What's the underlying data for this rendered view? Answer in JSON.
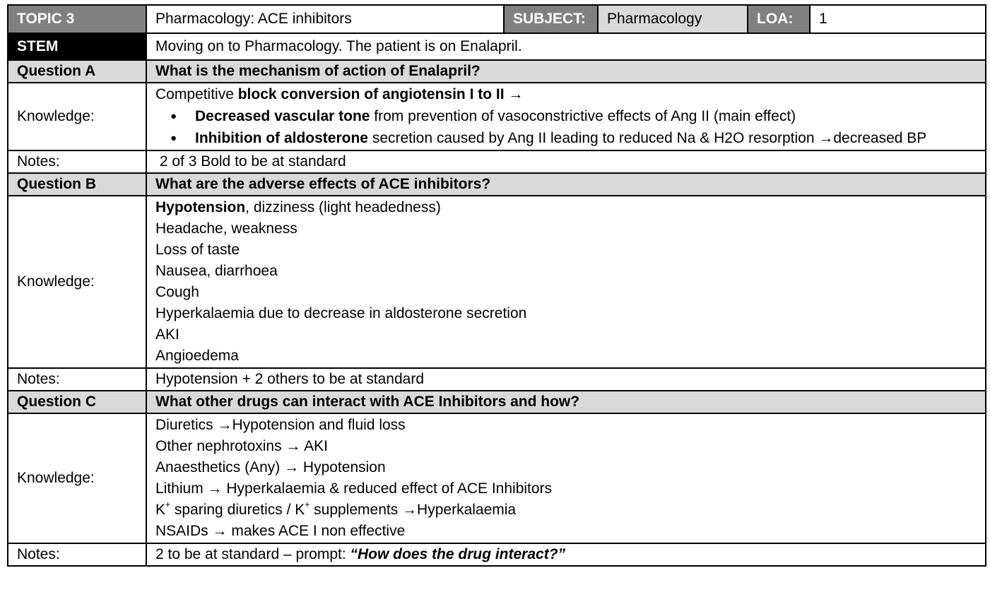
{
  "header": {
    "topic_label": "TOPIC 3",
    "topic_value": "Pharmacology: ACE inhibitors",
    "subject_label": "SUBJECT:",
    "subject_value": "Pharmacology",
    "loa_label": "LOA:",
    "loa_value": "1"
  },
  "stem": {
    "label": "STEM",
    "text": "Moving on to Pharmacology. The patient is on Enalapril."
  },
  "question_a": {
    "label": "Question A",
    "question": "What is the mechanism of action of Enalapril?",
    "knowledge_label": "Knowledge:",
    "intro_plain": "Competitive ",
    "intro_bold": "block conversion of angiotensin I to II →",
    "bullets": [
      {
        "bold": "Decreased vascular tone",
        "text": " from prevention of vasoconstrictive effects of Ang II (main effect)"
      },
      {
        "bold": "Inhibition of aldosterone",
        "text": " secretion caused by Ang II leading to reduced Na & H2O resorption →decreased BP"
      }
    ],
    "notes_label": "Notes:",
    "notes": " 2 of 3 Bold to be at standard"
  },
  "question_b": {
    "label": "Question B",
    "question": "What are the adverse effects of ACE inhibitors?",
    "knowledge_label": "Knowledge:",
    "first_bold": "Hypotension",
    "first_text": ", dizziness (light headedness)",
    "items": [
      "Headache, weakness",
      "Loss of taste",
      "Nausea, diarrhoea",
      "Cough",
      "Hyperkalaemia due to decrease in aldosterone secretion",
      "AKI",
      "Angioedema"
    ],
    "notes_label": "Notes:",
    "notes": "Hypotension + 2 others to be at standard"
  },
  "question_c": {
    "label": "Question C",
    "question": "What other drugs can interact with ACE Inhibitors and how?",
    "knowledge_label": "Knowledge:",
    "items": [
      "Diuretics →Hypotension and fluid loss",
      "Other nephrotoxins → AKI",
      "Anaesthetics (Any) → Hypotension",
      "Lithium → Hyperkalaemia & reduced effect of ACE Inhibitors"
    ],
    "k_line": {
      "k1": "K",
      "plus1": "+",
      "mid": " sparing diuretics / K",
      "plus2": "+",
      "end": " supplements →Hyperkalaemia"
    },
    "last_item": "NSAIDs → makes ACE I non effective",
    "notes_label": "Notes:",
    "notes_plain": "2 to be at standard – prompt: ",
    "notes_emph": "“How does the drug interact?”"
  }
}
